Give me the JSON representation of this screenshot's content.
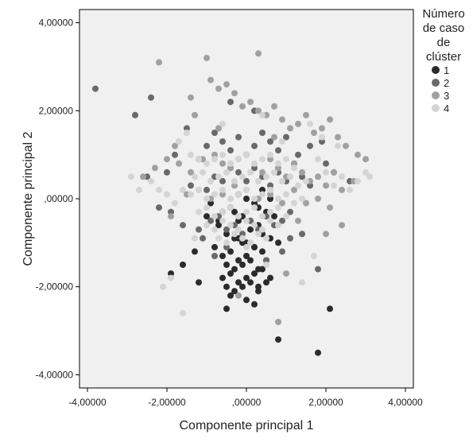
{
  "chart_data": {
    "type": "scatter",
    "title": "",
    "xlabel": "Componente principal 1",
    "ylabel": "Componente principal 2",
    "xlim": [
      -4.2,
      4.2
    ],
    "ylim": [
      -4.3,
      4.3
    ],
    "xticks": [
      -4,
      -2,
      0,
      2,
      4
    ],
    "yticks": [
      -4,
      -2,
      0,
      2,
      4
    ],
    "xtick_labels": [
      "-4,00000",
      "-2,00000",
      ",00000",
      "2,00000",
      "4,00000"
    ],
    "ytick_labels": [
      "-4,00000",
      "-2,00000",
      ",00000",
      "2,00000",
      "4,00000"
    ],
    "grid": false,
    "plot_background": "#f0f0f0",
    "legend": {
      "title_lines": [
        "Número",
        "de caso",
        "de",
        "clúster"
      ],
      "position": "right"
    },
    "series": [
      {
        "name": "1",
        "color": "#2b2b2b",
        "x": [
          -0.9,
          -0.6,
          -0.4,
          -0.2,
          -0.7,
          -0.5,
          -0.3,
          -0.1,
          0.1,
          0.3,
          -0.8,
          -0.6,
          -0.4,
          -0.2,
          0.0,
          0.2,
          0.4,
          -1.0,
          -0.7,
          -0.5,
          -0.3,
          -0.1,
          0.1,
          0.3,
          0.5,
          -0.6,
          -0.4,
          -0.2,
          0.0,
          0.2,
          0.4,
          0.6,
          -0.5,
          -0.3,
          -0.1,
          0.1,
          0.3,
          0.5,
          -0.4,
          -0.2,
          0.0,
          0.2,
          0.4,
          0.6,
          0.8,
          -0.3,
          -0.1,
          0.1,
          0.3,
          0.5,
          0.7,
          -0.2,
          0.0,
          0.2,
          0.4,
          0.6,
          0.0,
          0.3,
          0.8,
          1.8,
          2.1,
          -1.6,
          -1.3,
          -1.9,
          -1.2,
          0.2,
          -0.5
        ],
        "y": [
          -0.1,
          -0.3,
          -0.2,
          -0.5,
          -0.6,
          -0.8,
          -0.9,
          -1.0,
          -0.7,
          -0.6,
          -1.1,
          -1.3,
          -1.2,
          -1.4,
          -1.3,
          -1.1,
          -1.2,
          -0.4,
          -0.5,
          -1.5,
          -1.6,
          -1.5,
          -1.4,
          -1.6,
          -1.4,
          -1.8,
          -1.7,
          -1.9,
          -1.8,
          -1.7,
          -1.6,
          -1.8,
          -2.0,
          -2.1,
          -2.0,
          -1.9,
          -2.1,
          -1.9,
          -2.2,
          -0.9,
          -1.0,
          -1.1,
          -0.8,
          -0.9,
          -1.0,
          -0.3,
          -0.4,
          -0.5,
          -0.2,
          -0.3,
          -0.4,
          0.1,
          0.0,
          -0.1,
          0.2,
          0.0,
          -2.3,
          -2.0,
          -3.2,
          -3.5,
          -2.5,
          -1.5,
          -1.2,
          -1.7,
          -1.9,
          -2.4,
          -2.5
        ]
      },
      {
        "name": "2",
        "color": "#696969",
        "x": [
          -3.8,
          -2.8,
          -2.4,
          -2.5,
          -2.0,
          -1.8,
          -1.5,
          -1.2,
          -1.4,
          -1.0,
          -0.8,
          -0.6,
          -0.4,
          -0.2,
          0.0,
          0.2,
          0.4,
          0.6,
          0.8,
          1.0,
          1.2,
          1.4,
          1.6,
          -1.6,
          -1.2,
          -0.9,
          -0.7,
          -0.5,
          -0.3,
          -0.1,
          0.1,
          0.3,
          0.5,
          0.7,
          0.9,
          1.1,
          -1.0,
          -0.8,
          -0.6,
          -0.4,
          -0.2,
          0.0,
          0.2,
          0.4,
          0.6,
          0.8,
          1.0,
          1.3,
          1.6,
          1.9,
          2.0,
          2.2,
          2.6,
          -2.2,
          -1.9,
          -0.4,
          0.2,
          -0.5,
          0.5,
          0.9,
          -0.8,
          1.1,
          1.4,
          -1.1,
          1.8
        ],
        "y": [
          2.5,
          1.9,
          2.3,
          0.5,
          0.6,
          1.0,
          1.6,
          0.9,
          0.3,
          0.2,
          0.5,
          0.4,
          0.7,
          0.6,
          0.4,
          0.7,
          0.5,
          0.3,
          0.6,
          0.4,
          0.8,
          0.5,
          0.3,
          -0.6,
          -0.7,
          -0.5,
          -0.4,
          -0.7,
          -0.6,
          -0.8,
          -0.5,
          -0.7,
          -0.4,
          -0.6,
          -0.5,
          -0.3,
          1.2,
          1.5,
          1.3,
          1.1,
          1.4,
          1.0,
          1.2,
          1.5,
          1.3,
          1.1,
          1.4,
          1.0,
          1.2,
          1.3,
          0.8,
          0.6,
          0.4,
          -0.2,
          -0.3,
          2.2,
          2.0,
          -1.1,
          -1.4,
          -1.2,
          -1.3,
          -0.9,
          -0.8,
          -0.9,
          -1.6
        ]
      },
      {
        "name": "3",
        "color": "#a0a0a0",
        "x": [
          -2.2,
          -1.0,
          0.3,
          -1.4,
          -1.8,
          -1.3,
          -0.9,
          -0.7,
          -0.5,
          -0.3,
          -0.1,
          0.1,
          0.3,
          0.5,
          0.7,
          0.9,
          1.1,
          1.3,
          1.5,
          1.7,
          1.9,
          2.1,
          2.3,
          2.5,
          2.8,
          3.0,
          -2.6,
          -2.3,
          -2.0,
          -1.7,
          -1.4,
          -1.1,
          -0.8,
          -0.6,
          -0.4,
          -0.2,
          0.0,
          0.2,
          0.4,
          0.6,
          0.8,
          1.0,
          1.2,
          1.4,
          1.6,
          1.8,
          2.0,
          2.2,
          2.4,
          2.7,
          -1.5,
          -1.2,
          -0.9,
          -0.6,
          -0.3,
          0.0,
          0.3,
          0.6,
          0.9,
          1.2,
          1.5,
          1.8,
          2.1,
          -0.7,
          0.7,
          1.3,
          -1.9,
          2.4,
          0.8,
          -0.2,
          2.0,
          1.0
        ],
        "y": [
          3.1,
          3.2,
          3.3,
          2.3,
          1.2,
          1.9,
          2.7,
          2.5,
          2.6,
          2.4,
          2.1,
          2.2,
          2.0,
          1.9,
          2.1,
          1.8,
          1.6,
          1.7,
          1.9,
          1.5,
          1.6,
          1.8,
          1.4,
          1.2,
          1.0,
          0.9,
          0.5,
          0.7,
          0.9,
          0.8,
          0.6,
          0.9,
          1.0,
          0.8,
          0.7,
          0.9,
          1.0,
          0.8,
          0.6,
          0.9,
          0.7,
          0.5,
          0.8,
          0.6,
          0.4,
          0.5,
          0.3,
          0.6,
          0.2,
          0.4,
          0.1,
          0.2,
          0.0,
          0.1,
          0.3,
          0.2,
          0.0,
          0.1,
          -0.1,
          0.2,
          -0.1,
          0.0,
          -0.2,
          1.6,
          1.4,
          -0.5,
          -0.4,
          -0.6,
          -2.8,
          -2.2,
          -0.8,
          -1.7
        ]
      },
      {
        "name": "4",
        "color": "#d4d4d4",
        "x": [
          -1.4,
          -1.2,
          -1.0,
          -0.8,
          -0.6,
          -0.4,
          -0.2,
          0.0,
          0.2,
          0.4,
          0.6,
          0.8,
          1.0,
          1.2,
          -1.3,
          -1.1,
          -0.9,
          -0.7,
          -0.5,
          -0.3,
          -0.1,
          0.1,
          0.3,
          0.5,
          0.7,
          0.9,
          1.1,
          1.3,
          1.5,
          -1.6,
          -1.4,
          -1.2,
          -1.0,
          -0.8,
          -0.6,
          -0.4,
          -0.2,
          0.0,
          0.2,
          0.4,
          0.6,
          0.8,
          1.0,
          1.2,
          1.4,
          -1.2,
          -1.0,
          -0.8,
          -0.6,
          -0.4,
          -0.2,
          0.0,
          0.2,
          0.4,
          0.6,
          0.8,
          1.0,
          -1.0,
          -0.8,
          -0.6,
          -0.4,
          -0.2,
          0.0,
          0.2,
          0.4,
          0.6,
          0.8,
          -0.7,
          -0.5,
          -0.3,
          -0.1,
          0.1,
          0.3,
          0.5,
          -2.4,
          -2.2,
          -2.0,
          -1.8,
          1.8,
          2.0,
          2.2,
          2.4,
          2.6,
          2.8,
          3.0,
          3.1,
          -2.9,
          -2.7,
          -1.7,
          -1.5,
          1.6,
          1.9,
          2.3,
          -1.9,
          -2.1,
          -1.6,
          1.4,
          0.4,
          -0.6,
          0.9,
          -1.3,
          1.7,
          0.0,
          0.5
        ],
        "y": [
          1.0,
          0.9,
          0.8,
          0.9,
          1.0,
          0.8,
          0.9,
          1.0,
          0.8,
          0.9,
          1.0,
          0.8,
          0.9,
          0.7,
          0.5,
          0.6,
          0.4,
          0.5,
          0.6,
          0.4,
          0.5,
          0.6,
          0.4,
          0.5,
          0.6,
          0.4,
          0.5,
          0.3,
          0.4,
          0.2,
          0.1,
          0.2,
          0.0,
          0.1,
          0.2,
          0.0,
          0.1,
          0.2,
          0.0,
          0.1,
          0.2,
          0.0,
          0.1,
          -0.1,
          0.0,
          -0.3,
          -0.2,
          -0.4,
          -0.3,
          -0.2,
          -0.4,
          -0.3,
          -0.2,
          -0.4,
          -0.3,
          -0.2,
          -0.4,
          -0.6,
          -0.7,
          -0.5,
          -0.6,
          -0.7,
          -0.5,
          -0.6,
          -0.7,
          -0.5,
          -0.6,
          -0.9,
          -1.0,
          -0.8,
          -0.9,
          -1.0,
          -0.8,
          -0.9,
          0.4,
          0.2,
          0.1,
          -0.1,
          0.9,
          0.6,
          0.3,
          0.5,
          0.2,
          0.4,
          0.6,
          0.5,
          0.5,
          0.2,
          1.3,
          1.5,
          1.7,
          1.4,
          1.2,
          -1.8,
          -2.0,
          -2.6,
          -1.9,
          1.9,
          1.7,
          1.3,
          -0.9,
          -1.3,
          -1.1,
          -1.5
        ]
      }
    ]
  }
}
